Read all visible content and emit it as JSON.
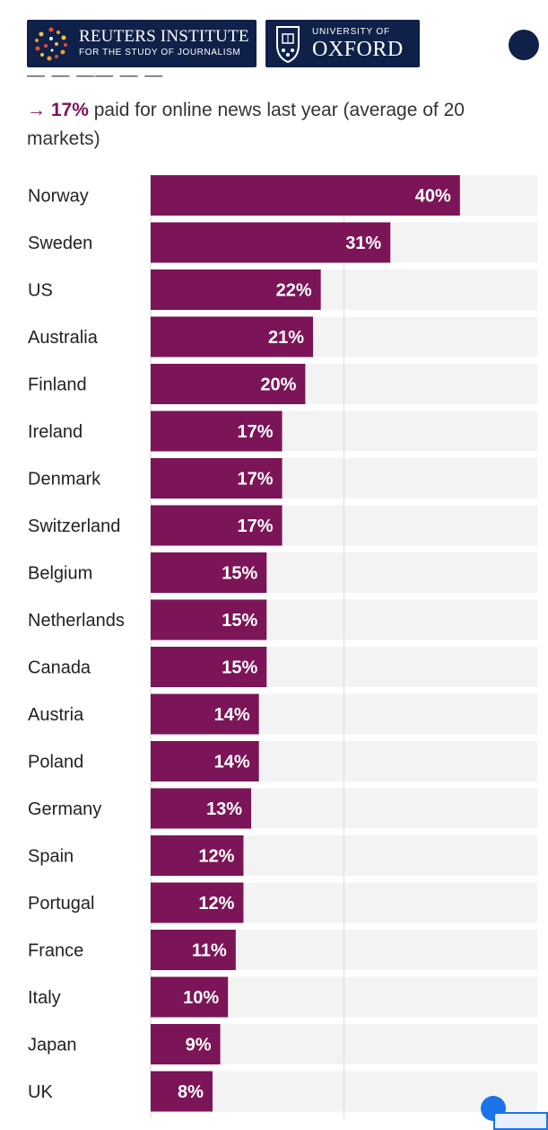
{
  "header": {
    "reuters": {
      "title": "REUTERS INSTITUTE",
      "subtitle": "FOR THE STUDY OF JOURNALISM"
    },
    "oxford": {
      "line1": "UNIVERSITY OF",
      "line2": "OXFORD"
    },
    "menu_icon": "menu-dot-icon",
    "cut_text": "— — —— — —"
  },
  "summary": {
    "arrow": "→",
    "percent": "17%",
    "text": " paid for online news last year (average of 20 markets)"
  },
  "colors": {
    "bar": "#7b1557",
    "track": "#f3f3f3",
    "navy": "#0f2148",
    "accent": "#7a1457"
  },
  "chart_data": {
    "type": "bar",
    "orientation": "horizontal",
    "categories": [
      "Norway",
      "Sweden",
      "US",
      "Australia",
      "Finland",
      "Ireland",
      "Denmark",
      "Switzerland",
      "Belgium",
      "Netherlands",
      "Canada",
      "Austria",
      "Poland",
      "Germany",
      "Spain",
      "Portugal",
      "France",
      "Italy",
      "Japan",
      "UK"
    ],
    "values": [
      40,
      31,
      22,
      21,
      20,
      17,
      17,
      17,
      15,
      15,
      15,
      14,
      14,
      13,
      12,
      12,
      11,
      10,
      9,
      8
    ],
    "value_labels": [
      "40%",
      "31%",
      "22%",
      "21%",
      "20%",
      "17%",
      "17%",
      "17%",
      "15%",
      "15%",
      "15%",
      "14%",
      "14%",
      "13%",
      "12%",
      "12%",
      "11%",
      "10%",
      "9%",
      "8%"
    ],
    "xlim": [
      0,
      50
    ],
    "gridline_at": 25,
    "unit": "%"
  }
}
